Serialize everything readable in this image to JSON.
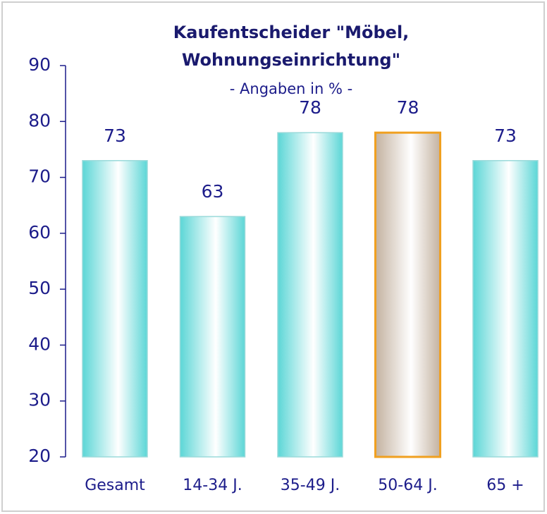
{
  "chart_data": {
    "type": "bar",
    "title": [
      "Kaufentscheider \"Möbel,",
      "Wohnungseinrichtung\""
    ],
    "subtitle": "-  Angaben in % -",
    "categories": [
      "Gesamt",
      "14-34 J.",
      "35-49 J.",
      "50-64 J.",
      "65 +"
    ],
    "values": [
      73,
      63,
      78,
      78,
      73
    ],
    "colors": [
      "#3fcfcf",
      "#3fcfcf",
      "#3fcfcf",
      "#b9a48f",
      "#3fcfcf"
    ],
    "edge_colors": [
      "#9adada",
      "#9adada",
      "#9adada",
      "#f0a020",
      "#9adada"
    ],
    "ylim": [
      20,
      90
    ],
    "yticks": [
      20,
      30,
      40,
      50,
      60,
      70,
      80,
      90
    ]
  }
}
